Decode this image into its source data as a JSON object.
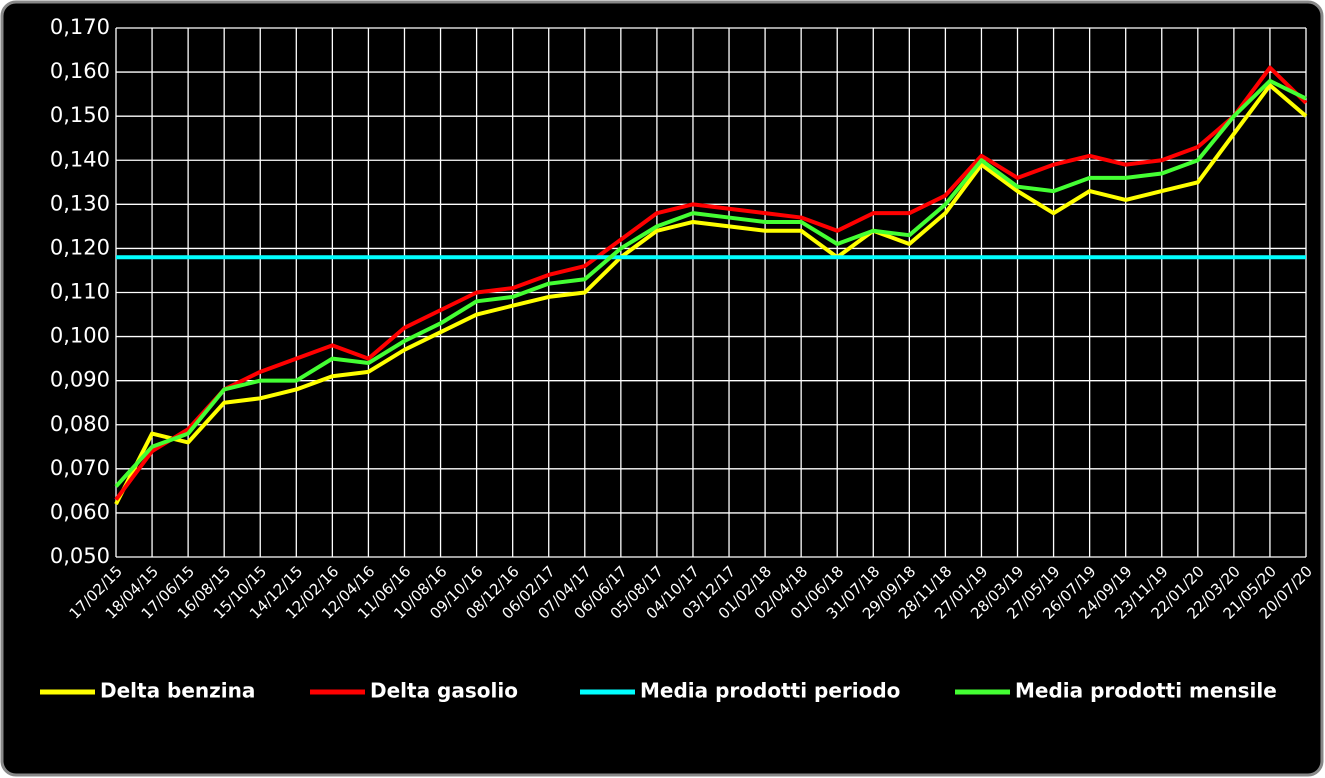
{
  "chart_data": {
    "type": "line",
    "categories": [
      "17/02/15",
      "18/04/15",
      "17/06/15",
      "16/08/15",
      "15/10/15",
      "14/12/15",
      "12/02/16",
      "12/04/16",
      "11/06/16",
      "10/08/16",
      "09/10/16",
      "08/12/16",
      "06/02/17",
      "07/04/17",
      "06/06/17",
      "05/08/17",
      "04/10/17",
      "03/12/17",
      "01/02/18",
      "02/04/18",
      "01/06/18",
      "31/07/18",
      "29/09/18",
      "28/11/18",
      "27/01/19",
      "28/03/19",
      "27/05/19",
      "26/07/19",
      "24/09/19",
      "23/11/19",
      "22/01/20",
      "22/03/20",
      "21/05/20",
      "20/07/20"
    ],
    "series": [
      {
        "name": "Delta benzina",
        "color": "#ffff00",
        "values": [
          0.062,
          0.078,
          0.076,
          0.085,
          0.086,
          0.088,
          0.091,
          0.092,
          0.097,
          0.101,
          0.105,
          0.107,
          0.109,
          0.11,
          0.118,
          0.124,
          0.126,
          0.125,
          0.124,
          0.124,
          0.118,
          0.124,
          0.121,
          0.128,
          0.139,
          0.133,
          0.128,
          0.133,
          0.131,
          0.133,
          0.135,
          0.146,
          0.157,
          0.15
        ]
      },
      {
        "name": "Delta gasolio",
        "color": "#ff0000",
        "values": [
          0.063,
          0.074,
          0.079,
          0.088,
          0.092,
          0.095,
          0.098,
          0.095,
          0.102,
          0.106,
          0.11,
          0.111,
          0.114,
          0.116,
          0.122,
          0.128,
          0.13,
          0.129,
          0.128,
          0.127,
          0.124,
          0.128,
          0.128,
          0.132,
          0.141,
          0.136,
          0.139,
          0.141,
          0.139,
          0.14,
          0.143,
          0.15,
          0.161,
          0.153
        ]
      },
      {
        "name": "Media prodotti periodo",
        "color": "#00ffff",
        "values": [
          0.118,
          0.118,
          0.118,
          0.118,
          0.118,
          0.118,
          0.118,
          0.118,
          0.118,
          0.118,
          0.118,
          0.118,
          0.118,
          0.118,
          0.118,
          0.118,
          0.118,
          0.118,
          0.118,
          0.118,
          0.118,
          0.118,
          0.118,
          0.118,
          0.118,
          0.118,
          0.118,
          0.118,
          0.118,
          0.118,
          0.118,
          0.118,
          0.118,
          0.118
        ]
      },
      {
        "name": "Media prodotti mensile",
        "color": "#44ff33",
        "values": [
          0.066,
          0.075,
          0.078,
          0.088,
          0.09,
          0.09,
          0.095,
          0.094,
          0.099,
          0.103,
          0.108,
          0.109,
          0.112,
          0.113,
          0.12,
          0.125,
          0.128,
          0.127,
          0.126,
          0.126,
          0.121,
          0.124,
          0.123,
          0.13,
          0.14,
          0.134,
          0.133,
          0.136,
          0.136,
          0.137,
          0.14,
          0.15,
          0.158,
          0.154
        ]
      }
    ],
    "ylim": [
      0.05,
      0.17
    ],
    "yticks": [
      {
        "value": 0.05,
        "label": "0,050"
      },
      {
        "value": 0.06,
        "label": "0,060"
      },
      {
        "value": 0.07,
        "label": "0,070"
      },
      {
        "value": 0.08,
        "label": "0,080"
      },
      {
        "value": 0.09,
        "label": "0,090"
      },
      {
        "value": 0.1,
        "label": "0,100"
      },
      {
        "value": 0.11,
        "label": "0,110"
      },
      {
        "value": 0.12,
        "label": "0,120"
      },
      {
        "value": 0.13,
        "label": "0,130"
      },
      {
        "value": 0.14,
        "label": "0,140"
      },
      {
        "value": 0.15,
        "label": "0,150"
      },
      {
        "value": 0.16,
        "label": "0,160"
      },
      {
        "value": 0.17,
        "label": "0,170"
      }
    ],
    "grid": true,
    "legend": "bottom"
  }
}
